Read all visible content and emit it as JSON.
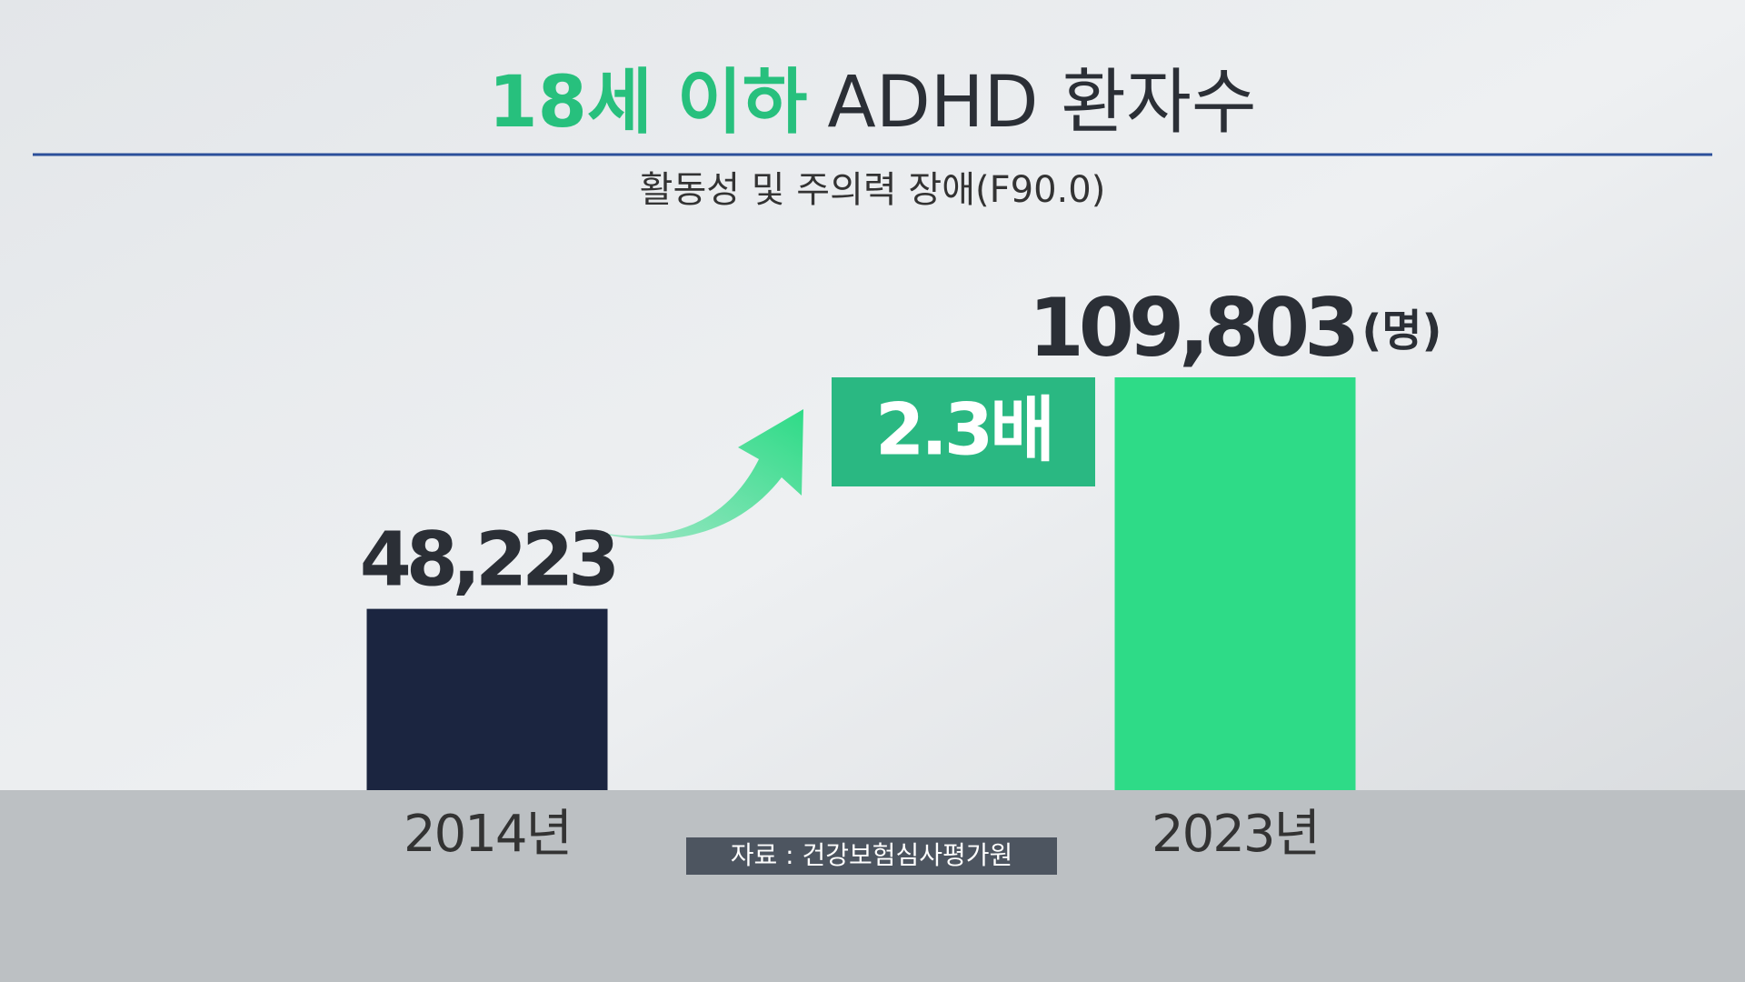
{
  "chart_data": {
    "type": "bar",
    "title_highlight": "18세 이하",
    "title": "ADHD 환자수",
    "subtitle": "활동성 및 주의력 장애(F90.0)",
    "categories": [
      "2014년",
      "2023년"
    ],
    "values": [
      48223,
      109803
    ],
    "value_labels": [
      "48,223",
      "109,803"
    ],
    "unit": "(명)",
    "colors": [
      "#1b2540",
      "#2edb87"
    ],
    "annotation": "2.3배",
    "source": "자료 : 건강보험심사평가원"
  }
}
